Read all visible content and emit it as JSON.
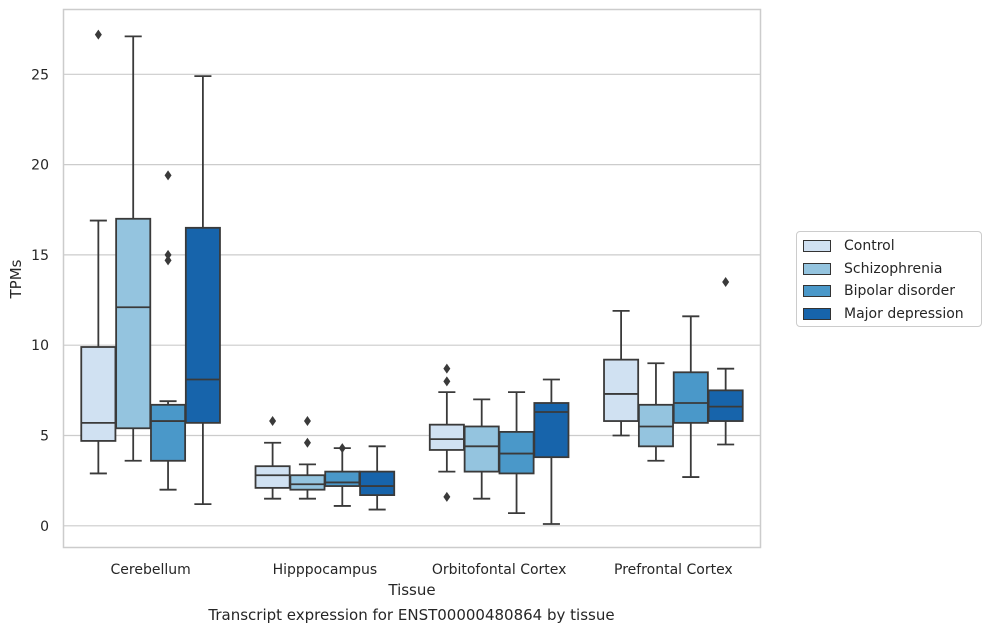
{
  "chart_data": {
    "type": "box",
    "xlabel": "Tissue",
    "ylabel": "TPMs",
    "caption": "Transcript expression for ENST00000480864 by tissue",
    "ylim": [
      -1.2,
      28.0
    ],
    "yticks": [
      0,
      5,
      10,
      15,
      20,
      25
    ],
    "grid": "horizontal",
    "legend_position": "right",
    "categories": [
      "Cerebellum",
      "Hipppocampus",
      "Orbitofontal Cortex",
      "Prefrontal Cortex"
    ],
    "series": [
      {
        "name": "Control",
        "color": "#d0e1f2",
        "boxes": [
          {
            "whislo": 2.9,
            "q1": 4.7,
            "med": 5.7,
            "q3": 9.9,
            "whishi": 16.9,
            "fliers": [
              27.2
            ]
          },
          {
            "whislo": 1.5,
            "q1": 2.1,
            "med": 2.8,
            "q3": 3.3,
            "whishi": 4.6,
            "fliers": [
              5.8
            ]
          },
          {
            "whislo": 3.0,
            "q1": 4.2,
            "med": 4.8,
            "q3": 5.6,
            "whishi": 7.4,
            "fliers": [
              8.0,
              8.7,
              1.6
            ]
          },
          {
            "whislo": 5.0,
            "q1": 5.8,
            "med": 7.3,
            "q3": 9.2,
            "whishi": 11.9,
            "fliers": []
          }
        ]
      },
      {
        "name": "Schizophrenia",
        "color": "#94c4df",
        "boxes": [
          {
            "whislo": 3.6,
            "q1": 5.4,
            "med": 12.1,
            "q3": 17.0,
            "whishi": 27.1,
            "fliers": []
          },
          {
            "whislo": 1.5,
            "q1": 2.0,
            "med": 2.3,
            "q3": 2.8,
            "whishi": 3.4,
            "fliers": [
              4.6,
              5.8
            ]
          },
          {
            "whislo": 1.5,
            "q1": 3.0,
            "med": 4.4,
            "q3": 5.5,
            "whishi": 7.0,
            "fliers": []
          },
          {
            "whislo": 3.6,
            "q1": 4.4,
            "med": 5.5,
            "q3": 6.7,
            "whishi": 9.0,
            "fliers": []
          }
        ]
      },
      {
        "name": "Bipolar disorder",
        "color": "#4a98c9",
        "boxes": [
          {
            "whislo": 2.0,
            "q1": 3.6,
            "med": 5.8,
            "q3": 6.7,
            "whishi": 6.9,
            "fliers": [
              14.7,
              15.0,
              19.4
            ]
          },
          {
            "whislo": 1.1,
            "q1": 2.2,
            "med": 2.4,
            "q3": 3.0,
            "whishi": 4.3,
            "fliers": [
              4.3
            ]
          },
          {
            "whislo": 0.7,
            "q1": 2.9,
            "med": 4.0,
            "q3": 5.2,
            "whishi": 7.4,
            "fliers": []
          },
          {
            "whislo": 2.7,
            "q1": 5.7,
            "med": 6.8,
            "q3": 8.5,
            "whishi": 11.6,
            "fliers": []
          }
        ]
      },
      {
        "name": "Major depression",
        "color": "#1764ab",
        "boxes": [
          {
            "whislo": 1.2,
            "q1": 5.7,
            "med": 8.1,
            "q3": 16.5,
            "whishi": 24.9,
            "fliers": []
          },
          {
            "whislo": 0.9,
            "q1": 1.7,
            "med": 2.2,
            "q3": 3.0,
            "whishi": 4.4,
            "fliers": []
          },
          {
            "whislo": 0.1,
            "q1": 3.8,
            "med": 6.3,
            "q3": 6.8,
            "whishi": 8.1,
            "fliers": []
          },
          {
            "whislo": 4.5,
            "q1": 5.8,
            "med": 6.6,
            "q3": 7.5,
            "whishi": 8.7,
            "fliers": [
              13.5
            ]
          }
        ]
      }
    ]
  }
}
